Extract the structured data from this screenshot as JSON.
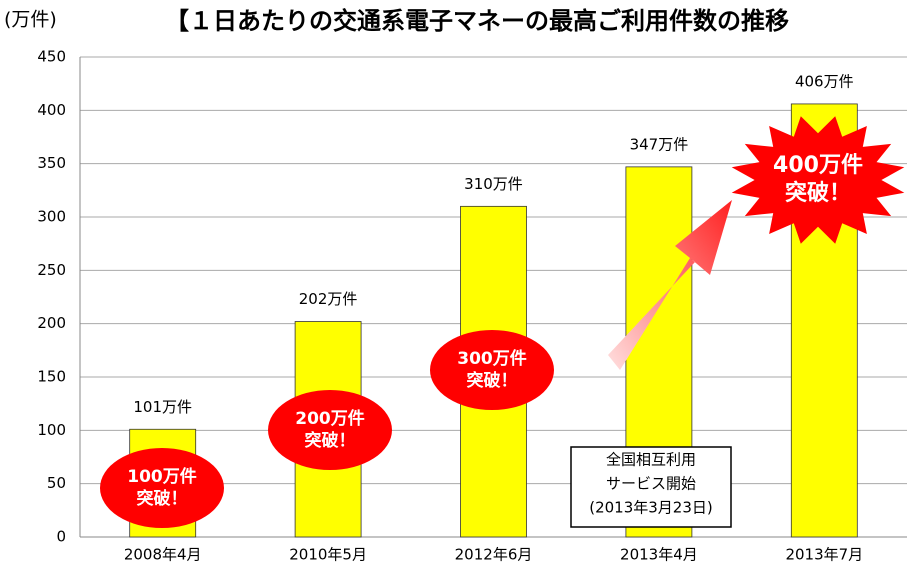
{
  "chart_data": {
    "type": "bar",
    "title": "【１日あたりの交通系電子マネーの最高ご利用件数の推移",
    "y_axis_unit": "(万件)",
    "categories": [
      "2008年4月",
      "2010年5月",
      "2012年6月",
      "2013年4月",
      "2013年7月"
    ],
    "values": [
      101,
      202,
      310,
      347,
      406
    ],
    "value_labels": [
      "101万件",
      "202万件",
      "310万件",
      "347万件",
      "406万件"
    ],
    "color": "#ffff00",
    "ylim": [
      0,
      450
    ],
    "yticks": [
      0,
      50,
      100,
      150,
      200,
      250,
      300,
      350,
      400,
      450
    ],
    "grid": true,
    "annotations": [
      {
        "lines": [
          "100万件",
          "突破！"
        ]
      },
      {
        "lines": [
          "200万件",
          "突破！"
        ]
      },
      {
        "lines": [
          "300万件",
          "突破！"
        ]
      },
      {
        "lines": [
          "400万件",
          "突破！"
        ]
      },
      {
        "lines": [
          "全国相互利用",
          "サービス開始",
          "(2013年3月23日)"
        ]
      }
    ]
  }
}
